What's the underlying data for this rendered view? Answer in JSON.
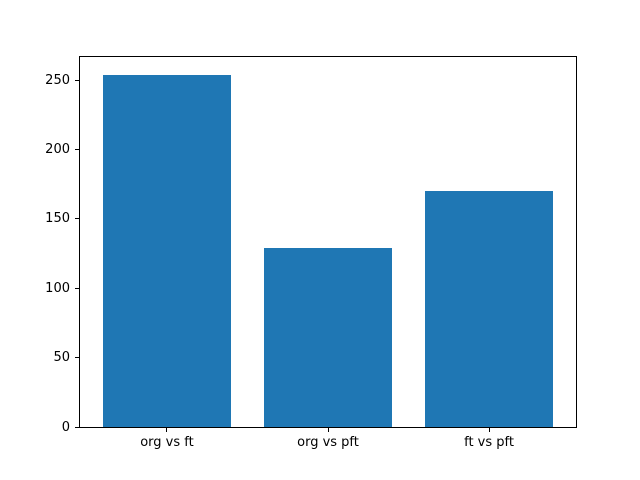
{
  "chart_data": {
    "type": "bar",
    "categories": [
      "org vs ft",
      "org vs pft",
      "ft vs pft"
    ],
    "values": [
      254,
      129,
      170
    ],
    "yticks": [
      0,
      50,
      100,
      150,
      200,
      250
    ],
    "ylim": [
      0,
      266.7
    ],
    "bar_width_fraction": 0.8,
    "grid": false,
    "legend": false,
    "bar_color": "#1f77b4",
    "axes_background": "#ffffff",
    "figure_background": "#ffffff",
    "spine_color": "#000000",
    "tick_label_color": "#000000"
  }
}
